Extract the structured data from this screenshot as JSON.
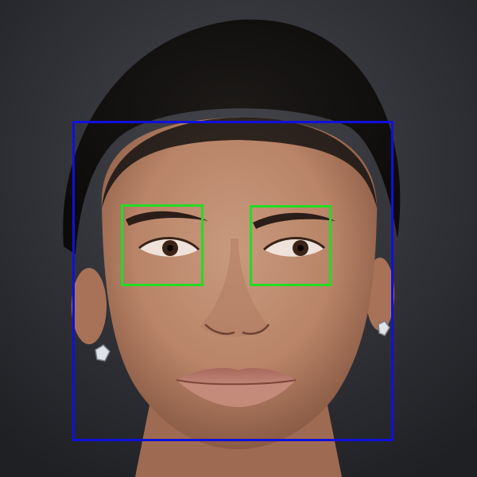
{
  "scene": {
    "subject": "portrait-face",
    "background_color": "#2b2c31",
    "skin_color": "#b98468",
    "hair_color": "#151312"
  },
  "detections": {
    "face_box_color": "#1010dd",
    "eye_box_color": "#22dd22",
    "boxes": [
      {
        "label": "face"
      },
      {
        "label": "left-eye"
      },
      {
        "label": "right-eye"
      }
    ]
  }
}
